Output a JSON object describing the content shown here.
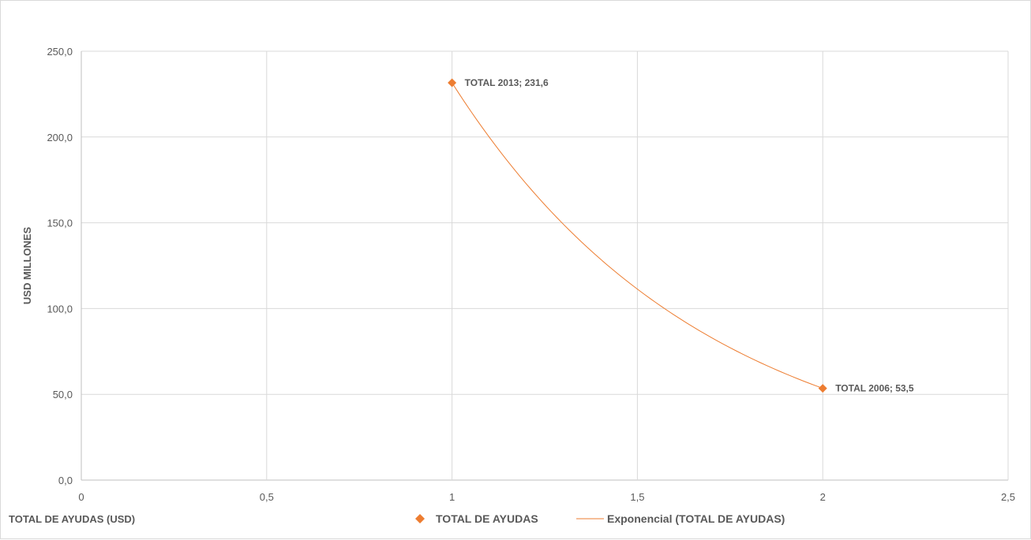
{
  "chart_data": {
    "type": "scatter",
    "title": "",
    "xlabel": "TOTAL DE AYUDAS (USD)",
    "ylabel": "USD MILLONES",
    "xlim": [
      0,
      2.5
    ],
    "ylim": [
      0,
      250
    ],
    "x_ticks": [
      "0",
      "0,5",
      "1",
      "1,5",
      "2",
      "2,5"
    ],
    "x_tick_values": [
      0,
      0.5,
      1,
      1.5,
      2,
      2.5
    ],
    "y_ticks": [
      "0,0",
      "50,0",
      "100,0",
      "150,0",
      "200,0",
      "250,0"
    ],
    "y_tick_values": [
      0,
      50,
      100,
      150,
      200,
      250
    ],
    "grid": true,
    "legend_position": "bottom",
    "series": [
      {
        "name": "TOTAL DE AYUDAS",
        "color": "#ED7D31",
        "marker": "diamond",
        "points": [
          {
            "x": 1,
            "y": 231.6,
            "label": "TOTAL 2013; 231,6"
          },
          {
            "x": 2,
            "y": 53.5,
            "label": "TOTAL 2006; 53,5"
          }
        ]
      }
    ],
    "trendline": {
      "name": "Exponencial (TOTAL DE AYUDAS)",
      "type": "exponential",
      "color": "#ED7D31",
      "x_range": [
        1,
        2
      ]
    }
  }
}
